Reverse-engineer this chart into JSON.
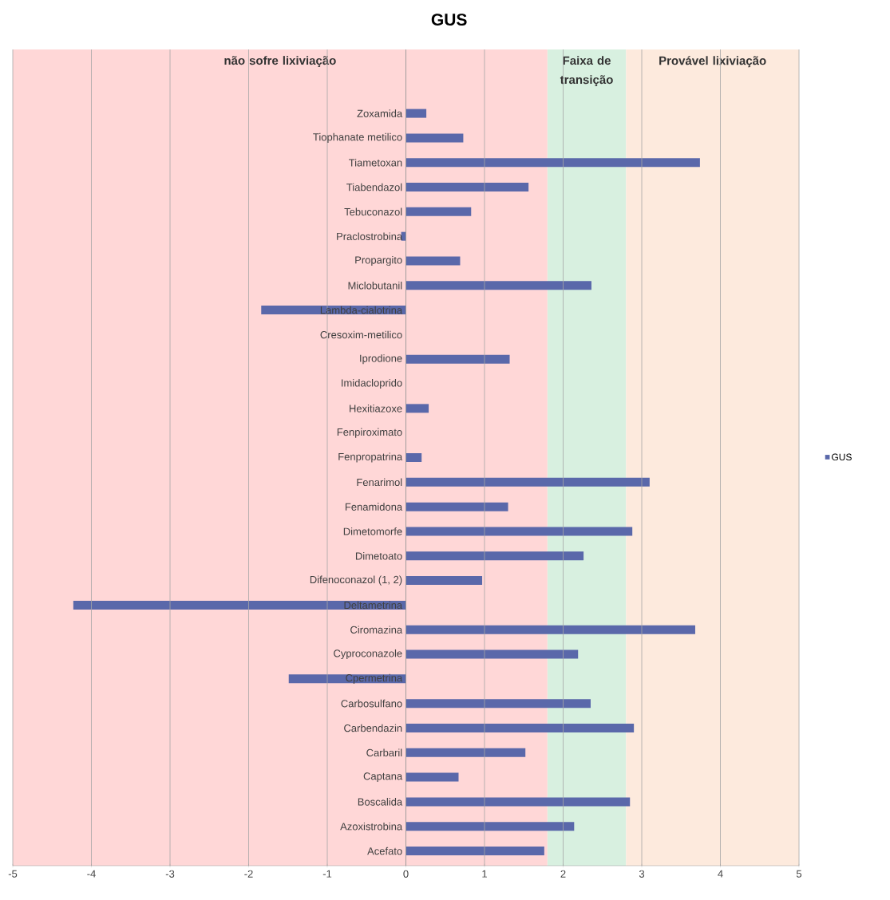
{
  "chart_data": {
    "type": "bar",
    "orientation": "horizontal",
    "title": "GUS",
    "categories": [
      "Zoxamida",
      "Tiophanate metilico",
      "Tiametoxan",
      "Tiabendazol",
      "Tebuconazol",
      "Praclostrobina",
      "Propargito",
      "Miclobutanil",
      "Lambda-cialotrina",
      "Cresoxim-metilico",
      "Iprodione",
      "Imidacloprido",
      "Hexitiazoxe",
      "Fenpiroximato",
      "Fenpropatrina",
      "Fenarimol",
      "Fenamidona",
      "Dimetomorfe",
      "Dimetoato",
      "Difenoconazol (1, 2)",
      "Deltametrina",
      "Ciromazina",
      "Cyproconazole",
      "Cpermetrina",
      "Carbosulfano",
      "Carbendazin",
      "Carbaril",
      "Captana",
      "Boscalida",
      "Azoxistrobina",
      "Acefato"
    ],
    "series": [
      {
        "name": "GUS",
        "color": "#5a68aa",
        "values": [
          0.26,
          0.73,
          3.74,
          1.56,
          0.83,
          -0.06,
          0.69,
          2.36,
          -1.84,
          null,
          1.32,
          null,
          0.29,
          null,
          0.2,
          3.1,
          1.3,
          2.88,
          2.26,
          0.97,
          -4.23,
          3.68,
          2.19,
          -1.49,
          2.35,
          2.9,
          1.52,
          0.67,
          2.85,
          2.14,
          1.76
        ]
      }
    ],
    "xlim": [
      -5,
      5
    ],
    "xticks": [
      -5,
      -4,
      -3,
      -2,
      -1,
      0,
      1,
      2,
      3,
      4,
      5
    ],
    "bands": [
      {
        "axis": "x",
        "from": -5,
        "to": 1.8,
        "label": "não sofre lixiviação",
        "color": "#ffd7d7"
      },
      {
        "axis": "x",
        "from": 1.8,
        "to": 2.8,
        "label": "Faixa de transição",
        "color": "#d8f0e0"
      },
      {
        "axis": "x",
        "from": 2.8,
        "to": 5,
        "label": "Provável lixiviação",
        "color": "#fdeadd"
      }
    ],
    "grid": "x",
    "legend": "right"
  }
}
